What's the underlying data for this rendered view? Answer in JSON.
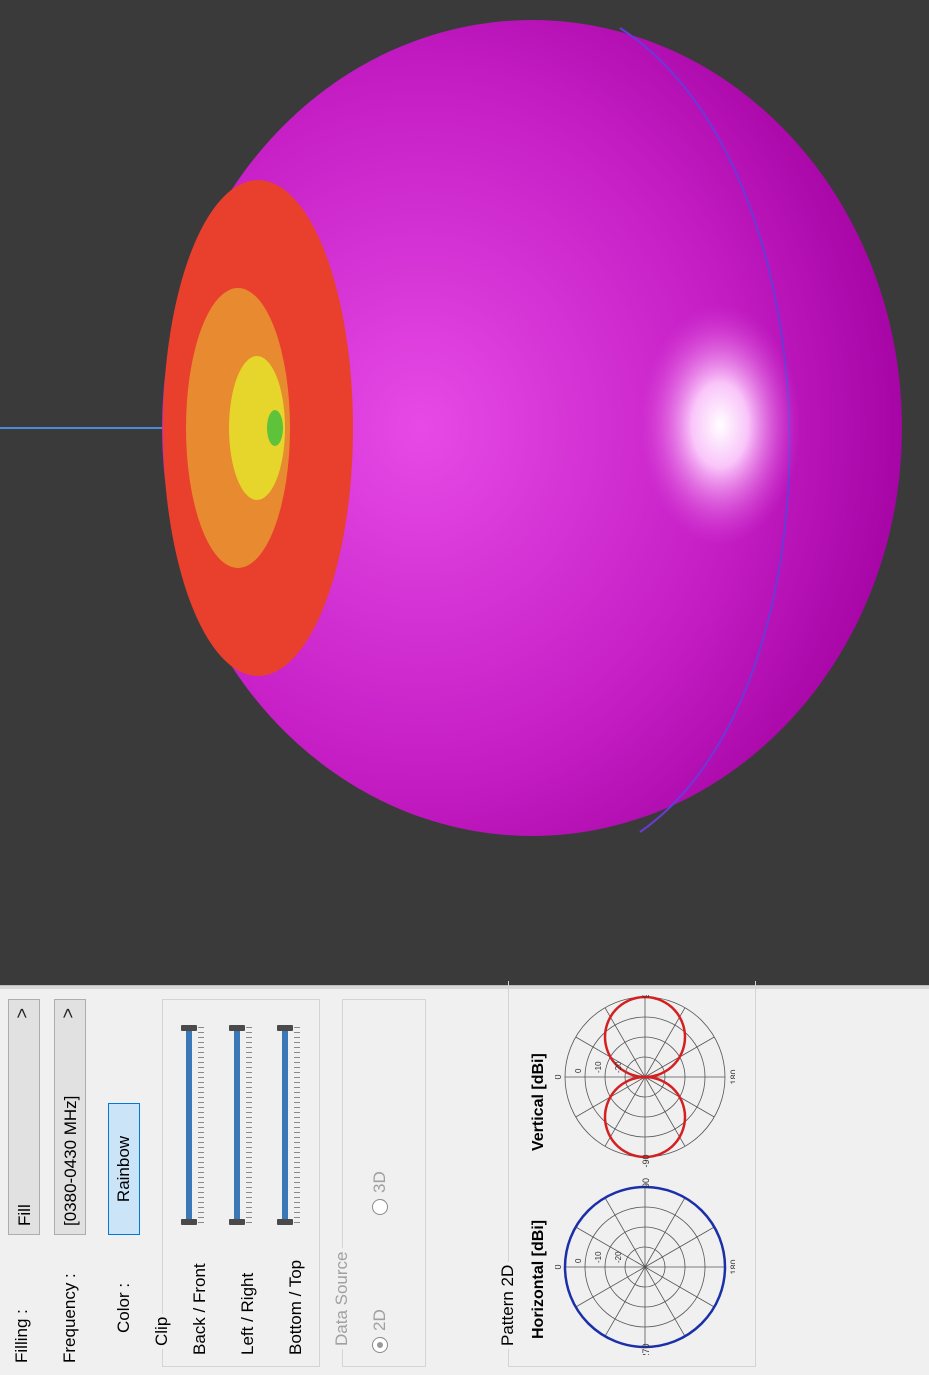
{
  "viewport": {
    "background": "#3a3a3a",
    "sphere_color": "#c81ec8"
  },
  "controls": {
    "filling_label": "Filling :",
    "filling_value": "Fill",
    "frequency_label": "Frequency :",
    "frequency_value": "[0380-0430 MHz]",
    "color_label": "Color :",
    "color_button": "Rainbow",
    "chevron": ">"
  },
  "clip": {
    "title": "Clip",
    "sliders": [
      {
        "label": "Back / Front"
      },
      {
        "label": "Left / Right"
      },
      {
        "label": "Bottom / Top"
      }
    ]
  },
  "data_source": {
    "title": "Data Source",
    "options": [
      {
        "label": "2D",
        "checked": true
      },
      {
        "label": "3D",
        "checked": false
      }
    ]
  },
  "pattern2d": {
    "title": "Pattern 2D",
    "horizontal": {
      "title": "Horizontal [dBi]",
      "color": "#1a2fa8",
      "angle_labels": [
        "0",
        "90",
        "180",
        "270"
      ],
      "ring_labels": [
        "-20",
        "-10",
        "0"
      ]
    },
    "vertical": {
      "title": "Vertical [dBi]",
      "color": "#d42020",
      "angle_labels": [
        "0",
        "90",
        "180",
        "-90"
      ],
      "ring_labels": [
        "-20",
        "-10",
        "0"
      ]
    }
  }
}
